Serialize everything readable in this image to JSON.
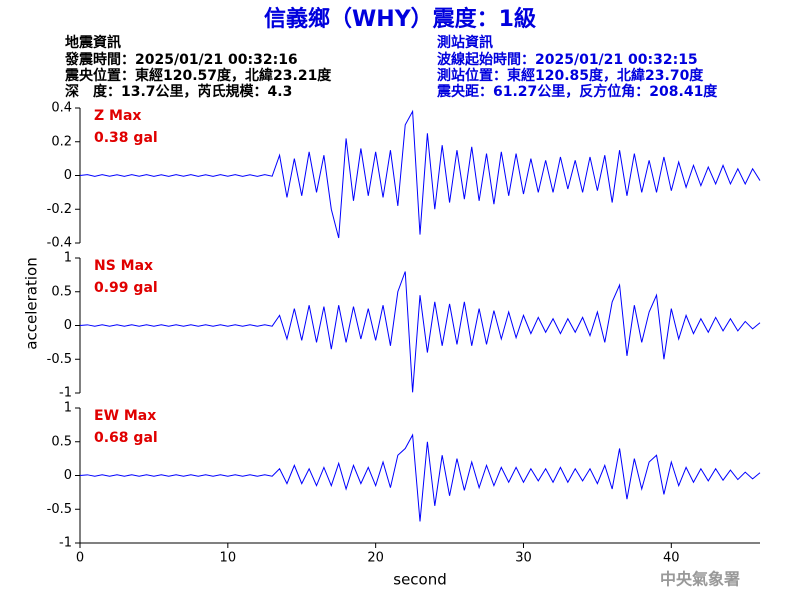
{
  "header": {
    "title": "信義鄉（WHY）震度：1級",
    "left": [
      "地震資訊",
      "發震時間：2025/01/21 00:32:16",
      "震央位置：東經120.57度，北緯23.21度",
      "深　度：13.7公里，芮氏規模：4.3"
    ],
    "right": [
      "測站資訊",
      "波線起始時間：2025/01/21 00:32:15",
      "測站位置：東經120.85度，北緯23.70度",
      "震央距：61.27公里，反方位角：208.41度"
    ],
    "watermark": "中央氣象署"
  },
  "chart_data": [
    {
      "type": "line",
      "annotations": [
        "Z Max",
        "0.38 gal"
      ],
      "xlim": [
        0,
        46
      ],
      "ylim": [
        -0.4,
        0.4
      ],
      "yticks": [
        0.4,
        0.2,
        0,
        -0.2,
        -0.4
      ],
      "x": [
        0,
        0.5,
        1,
        1.5,
        2,
        2.5,
        3,
        3.5,
        4,
        4.5,
        5,
        5.5,
        6,
        6.5,
        7,
        7.5,
        8,
        8.5,
        9,
        9.5,
        10,
        10.5,
        11,
        11.5,
        12,
        12.5,
        13,
        13.5,
        14,
        14.5,
        15,
        15.5,
        16,
        16.5,
        17,
        17.5,
        18,
        18.5,
        19,
        19.5,
        20,
        20.5,
        21,
        21.5,
        22,
        22.5,
        23,
        23.5,
        24,
        24.5,
        25,
        25.5,
        26,
        26.5,
        27,
        27.5,
        28,
        28.5,
        29,
        29.5,
        30,
        30.5,
        31,
        31.5,
        32,
        32.5,
        33,
        33.5,
        34,
        34.5,
        35,
        35.5,
        36,
        36.5,
        37,
        37.5,
        38,
        38.5,
        39,
        39.5,
        40,
        40.5,
        41,
        41.5,
        42,
        42.5,
        43,
        43.5,
        44,
        44.5,
        45,
        45.5,
        46
      ],
      "series": [
        {
          "color": "#0000ff",
          "values": [
            0,
            0.005,
            -0.005,
            0.005,
            -0.004,
            0.004,
            -0.005,
            0.005,
            -0.004,
            0.005,
            -0.005,
            0.004,
            -0.005,
            0.005,
            -0.004,
            0.005,
            -0.005,
            0.004,
            -0.005,
            0.005,
            -0.004,
            0.005,
            -0.005,
            0.004,
            -0.005,
            0.005,
            -0.004,
            0.12,
            -0.13,
            0.1,
            -0.12,
            0.14,
            -0.1,
            0.12,
            -0.2,
            -0.37,
            0.22,
            -0.15,
            0.16,
            -0.12,
            0.14,
            -0.13,
            0.15,
            -0.18,
            0.3,
            0.38,
            -0.35,
            0.25,
            -0.2,
            0.18,
            -0.16,
            0.15,
            -0.14,
            0.17,
            -0.15,
            0.13,
            -0.17,
            0.14,
            -0.12,
            0.13,
            -0.11,
            0.1,
            -0.1,
            0.09,
            -0.1,
            0.11,
            -0.08,
            0.09,
            -0.1,
            0.11,
            -0.09,
            0.12,
            -0.16,
            0.15,
            -0.12,
            0.13,
            -0.1,
            0.09,
            -0.1,
            0.11,
            -0.09,
            0.08,
            -0.07,
            0.06,
            -0.06,
            0.05,
            -0.05,
            0.06,
            -0.05,
            0.04,
            -0.05,
            0.04,
            -0.03
          ]
        }
      ]
    },
    {
      "type": "line",
      "annotations": [
        "NS Max",
        "0.99 gal"
      ],
      "ylabel": "acceleration",
      "xlim": [
        0,
        46
      ],
      "ylim": [
        -1,
        1
      ],
      "yticks": [
        1,
        0.5,
        0,
        -0.5,
        -1
      ],
      "x": [
        0,
        0.5,
        1,
        1.5,
        2,
        2.5,
        3,
        3.5,
        4,
        4.5,
        5,
        5.5,
        6,
        6.5,
        7,
        7.5,
        8,
        8.5,
        9,
        9.5,
        10,
        10.5,
        11,
        11.5,
        12,
        12.5,
        13,
        13.5,
        14,
        14.5,
        15,
        15.5,
        16,
        16.5,
        17,
        17.5,
        18,
        18.5,
        19,
        19.5,
        20,
        20.5,
        21,
        21.5,
        22,
        22.5,
        23,
        23.5,
        24,
        24.5,
        25,
        25.5,
        26,
        26.5,
        27,
        27.5,
        28,
        28.5,
        29,
        29.5,
        30,
        30.5,
        31,
        31.5,
        32,
        32.5,
        33,
        33.5,
        34,
        34.5,
        35,
        35.5,
        36,
        36.5,
        37,
        37.5,
        38,
        38.5,
        39,
        39.5,
        40,
        40.5,
        41,
        41.5,
        42,
        42.5,
        43,
        43.5,
        44,
        44.5,
        45,
        45.5,
        46
      ],
      "series": [
        {
          "color": "#0000ff",
          "values": [
            0,
            0.01,
            -0.01,
            0.01,
            -0.01,
            0.01,
            -0.01,
            0.01,
            -0.01,
            0.01,
            -0.01,
            0.01,
            -0.01,
            0.01,
            -0.01,
            0.01,
            -0.01,
            0.01,
            -0.01,
            0.01,
            -0.01,
            0.01,
            -0.01,
            0.01,
            -0.01,
            0.01,
            -0.01,
            0.15,
            -0.2,
            0.25,
            -0.22,
            0.3,
            -0.25,
            0.28,
            -0.35,
            0.3,
            -0.25,
            0.28,
            -0.2,
            0.25,
            -0.22,
            0.3,
            -0.3,
            0.5,
            0.8,
            -0.99,
            0.45,
            -0.4,
            0.35,
            -0.3,
            0.32,
            -0.28,
            0.35,
            -0.3,
            0.25,
            -0.28,
            0.22,
            -0.2,
            0.2,
            -0.18,
            0.15,
            -0.12,
            0.12,
            -0.1,
            0.1,
            -0.12,
            0.1,
            -0.1,
            0.12,
            -0.15,
            0.2,
            -0.25,
            0.35,
            0.6,
            -0.45,
            0.3,
            -0.25,
            0.2,
            0.45,
            -0.5,
            0.25,
            -0.2,
            0.15,
            -0.12,
            0.1,
            -0.1,
            0.12,
            -0.08,
            0.1,
            -0.08,
            0.06,
            -0.05,
            0.04
          ]
        }
      ]
    },
    {
      "type": "line",
      "annotations": [
        "EW Max",
        "0.68 gal"
      ],
      "xlabel": "second",
      "xlim": [
        0,
        46
      ],
      "ylim": [
        -1,
        1
      ],
      "yticks": [
        1,
        0.5,
        0,
        -0.5,
        -1
      ],
      "xticks": [
        0,
        10,
        20,
        30,
        40
      ],
      "x": [
        0,
        0.5,
        1,
        1.5,
        2,
        2.5,
        3,
        3.5,
        4,
        4.5,
        5,
        5.5,
        6,
        6.5,
        7,
        7.5,
        8,
        8.5,
        9,
        9.5,
        10,
        10.5,
        11,
        11.5,
        12,
        12.5,
        13,
        13.5,
        14,
        14.5,
        15,
        15.5,
        16,
        16.5,
        17,
        17.5,
        18,
        18.5,
        19,
        19.5,
        20,
        20.5,
        21,
        21.5,
        22,
        22.5,
        23,
        23.5,
        24,
        24.5,
        25,
        25.5,
        26,
        26.5,
        27,
        27.5,
        28,
        28.5,
        29,
        29.5,
        30,
        30.5,
        31,
        31.5,
        32,
        32.5,
        33,
        33.5,
        34,
        34.5,
        35,
        35.5,
        36,
        36.5,
        37,
        37.5,
        38,
        38.5,
        39,
        39.5,
        40,
        40.5,
        41,
        41.5,
        42,
        42.5,
        43,
        43.5,
        44,
        44.5,
        45,
        45.5,
        46
      ],
      "series": [
        {
          "color": "#0000ff",
          "values": [
            0,
            0.01,
            -0.01,
            0.01,
            -0.01,
            0.01,
            -0.01,
            0.01,
            -0.01,
            0.01,
            -0.01,
            0.01,
            -0.01,
            0.01,
            -0.01,
            0.01,
            -0.01,
            0.01,
            -0.01,
            0.01,
            -0.01,
            0.01,
            -0.01,
            0.01,
            -0.01,
            0.01,
            -0.01,
            0.1,
            -0.12,
            0.15,
            -0.12,
            0.1,
            -0.15,
            0.12,
            -0.15,
            0.18,
            -0.2,
            0.15,
            -0.12,
            0.12,
            -0.15,
            0.2,
            -0.18,
            0.3,
            0.4,
            0.6,
            -0.68,
            0.5,
            -0.45,
            0.3,
            -0.3,
            0.25,
            -0.22,
            0.2,
            -0.18,
            0.15,
            -0.15,
            0.12,
            -0.1,
            0.12,
            -0.1,
            0.1,
            -0.08,
            0.1,
            -0.1,
            0.12,
            -0.1,
            0.1,
            -0.08,
            0.1,
            -0.12,
            0.15,
            -0.2,
            0.4,
            -0.35,
            0.25,
            -0.2,
            0.2,
            0.3,
            -0.28,
            0.2,
            -0.15,
            0.12,
            -0.1,
            0.1,
            -0.08,
            0.1,
            -0.07,
            0.08,
            -0.06,
            0.05,
            -0.05,
            0.04
          ]
        }
      ]
    }
  ]
}
